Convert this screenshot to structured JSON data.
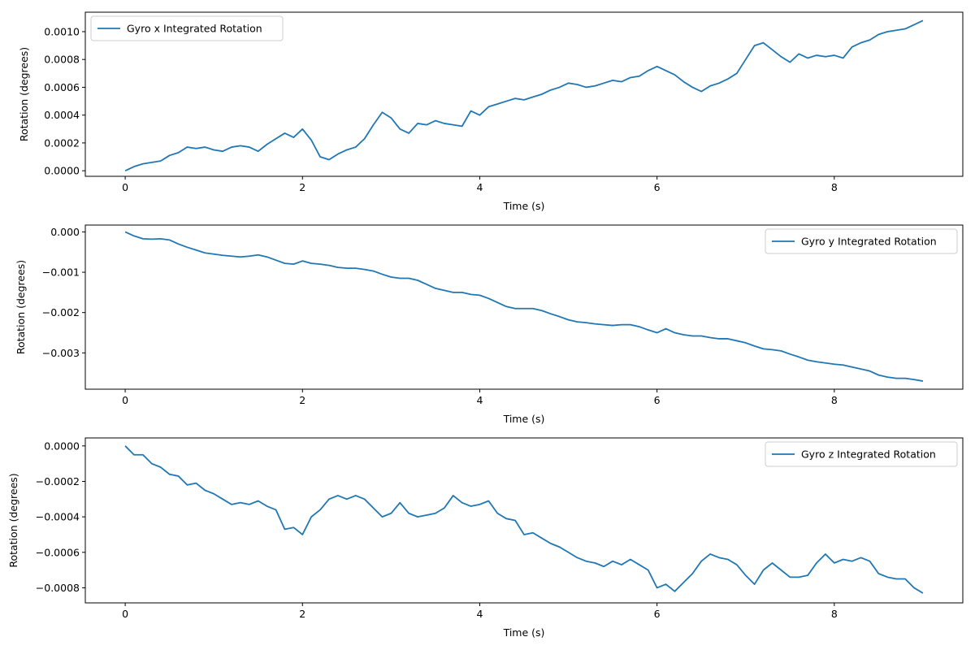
{
  "chart_data": [
    {
      "type": "line",
      "title": "",
      "xlabel": "Time (s)",
      "ylabel": "Rotation (degrees)",
      "xlim": [
        -0.45,
        9.45
      ],
      "ylim": [
        -4e-05,
        0.00114
      ],
      "xticks": [
        0,
        2,
        4,
        6,
        8
      ],
      "xtick_labels": [
        "0",
        "2",
        "4",
        "6",
        "8"
      ],
      "yticks": [
        0,
        0.0002,
        0.0004,
        0.0006,
        0.0008,
        0.001
      ],
      "ytick_labels": [
        "0.0000",
        "0.0002",
        "0.0004",
        "0.0006",
        "0.0008",
        "0.0010"
      ],
      "grid": false,
      "legend": {
        "placement": "upper-left"
      },
      "series": [
        {
          "name": "Gyro x Integrated Rotation",
          "color": "#1f77b4",
          "x": [
            0,
            0.1,
            0.2,
            0.3,
            0.4,
            0.5,
            0.6,
            0.7,
            0.8,
            0.9,
            1.0,
            1.1,
            1.2,
            1.3,
            1.4,
            1.5,
            1.6,
            1.7,
            1.8,
            1.9,
            2.0,
            2.1,
            2.2,
            2.3,
            2.4,
            2.5,
            2.6,
            2.7,
            2.8,
            2.9,
            3.0,
            3.1,
            3.2,
            3.3,
            3.4,
            3.5,
            3.6,
            3.7,
            3.8,
            3.9,
            4.0,
            4.1,
            4.2,
            4.3,
            4.4,
            4.5,
            4.6,
            4.7,
            4.8,
            4.9,
            5.0,
            5.1,
            5.2,
            5.3,
            5.4,
            5.5,
            5.6,
            5.7,
            5.8,
            5.9,
            6.0,
            6.1,
            6.2,
            6.3,
            6.4,
            6.5,
            6.6,
            6.7,
            6.8,
            6.9,
            7.0,
            7.1,
            7.2,
            7.3,
            7.4,
            7.5,
            7.6,
            7.7,
            7.8,
            7.9,
            8.0,
            8.1,
            8.2,
            8.3,
            8.4,
            8.5,
            8.6,
            8.7,
            8.8,
            8.9,
            9.0
          ],
          "y": [
            0.0,
            3e-05,
            5e-05,
            6e-05,
            7e-05,
            0.00011,
            0.00013,
            0.00017,
            0.00016,
            0.00017,
            0.00015,
            0.00014,
            0.00017,
            0.00018,
            0.00017,
            0.00014,
            0.00019,
            0.00023,
            0.00027,
            0.00024,
            0.0003,
            0.00022,
            0.0001,
            8e-05,
            0.00012,
            0.00015,
            0.00017,
            0.00023,
            0.00033,
            0.00042,
            0.00038,
            0.0003,
            0.00027,
            0.00034,
            0.00033,
            0.00036,
            0.00034,
            0.00033,
            0.00032,
            0.00043,
            0.0004,
            0.00046,
            0.00048,
            0.0005,
            0.00052,
            0.00051,
            0.00053,
            0.00055,
            0.00058,
            0.0006,
            0.00063,
            0.00062,
            0.0006,
            0.00061,
            0.00063,
            0.00065,
            0.00064,
            0.00067,
            0.00068,
            0.00072,
            0.00075,
            0.00072,
            0.00069,
            0.00064,
            0.0006,
            0.00057,
            0.00061,
            0.00063,
            0.00066,
            0.0007,
            0.0008,
            0.0009,
            0.00092,
            0.00087,
            0.00082,
            0.00078,
            0.00084,
            0.00081,
            0.00083,
            0.00082,
            0.00083,
            0.00081,
            0.00089,
            0.00092,
            0.00094,
            0.00098,
            0.001,
            0.00101,
            0.00102,
            0.00105,
            0.00108
          ]
        }
      ]
    },
    {
      "type": "line",
      "title": "",
      "xlabel": "Time (s)",
      "ylabel": "Rotation (degrees)",
      "xlim": [
        -0.45,
        9.45
      ],
      "ylim": [
        -0.0039,
        0.00017
      ],
      "xticks": [
        0,
        2,
        4,
        6,
        8
      ],
      "xtick_labels": [
        "0",
        "2",
        "4",
        "6",
        "8"
      ],
      "yticks": [
        0,
        -0.001,
        -0.002,
        -0.003
      ],
      "ytick_labels": [
        "0.000",
        "−0.001",
        "−0.002",
        "−0.003"
      ],
      "grid": false,
      "legend": {
        "placement": "upper-right"
      },
      "series": [
        {
          "name": "Gyro y Integrated Rotation",
          "color": "#1f77b4",
          "x": [
            0,
            0.1,
            0.2,
            0.3,
            0.4,
            0.5,
            0.6,
            0.7,
            0.8,
            0.9,
            1.0,
            1.1,
            1.2,
            1.3,
            1.4,
            1.5,
            1.6,
            1.7,
            1.8,
            1.9,
            2.0,
            2.1,
            2.2,
            2.3,
            2.4,
            2.5,
            2.6,
            2.7,
            2.8,
            2.9,
            3.0,
            3.1,
            3.2,
            3.3,
            3.4,
            3.5,
            3.6,
            3.7,
            3.8,
            3.9,
            4.0,
            4.1,
            4.2,
            4.3,
            4.4,
            4.5,
            4.6,
            4.7,
            4.8,
            4.9,
            5.0,
            5.1,
            5.2,
            5.3,
            5.4,
            5.5,
            5.6,
            5.7,
            5.8,
            5.9,
            6.0,
            6.1,
            6.2,
            6.3,
            6.4,
            6.5,
            6.6,
            6.7,
            6.8,
            6.9,
            7.0,
            7.1,
            7.2,
            7.3,
            7.4,
            7.5,
            7.6,
            7.7,
            7.8,
            7.9,
            8.0,
            8.1,
            8.2,
            8.3,
            8.4,
            8.5,
            8.6,
            8.7,
            8.8,
            8.9,
            9.0
          ],
          "y": [
            0.0,
            -0.0001,
            -0.00017,
            -0.00018,
            -0.00017,
            -0.0002,
            -0.0003,
            -0.00038,
            -0.00045,
            -0.00052,
            -0.00055,
            -0.00058,
            -0.0006,
            -0.00062,
            -0.0006,
            -0.00057,
            -0.00062,
            -0.0007,
            -0.00078,
            -0.0008,
            -0.00072,
            -0.00078,
            -0.0008,
            -0.00083,
            -0.00088,
            -0.0009,
            -0.0009,
            -0.00093,
            -0.00097,
            -0.00105,
            -0.00112,
            -0.00115,
            -0.00115,
            -0.0012,
            -0.0013,
            -0.0014,
            -0.00145,
            -0.0015,
            -0.0015,
            -0.00155,
            -0.00157,
            -0.00165,
            -0.00175,
            -0.00185,
            -0.0019,
            -0.0019,
            -0.0019,
            -0.00195,
            -0.00203,
            -0.0021,
            -0.00218,
            -0.00223,
            -0.00225,
            -0.00228,
            -0.0023,
            -0.00232,
            -0.0023,
            -0.0023,
            -0.00235,
            -0.00243,
            -0.0025,
            -0.0024,
            -0.0025,
            -0.00255,
            -0.00258,
            -0.00258,
            -0.00262,
            -0.00265,
            -0.00265,
            -0.0027,
            -0.00275,
            -0.00283,
            -0.0029,
            -0.00292,
            -0.00295,
            -0.00303,
            -0.0031,
            -0.00318,
            -0.00322,
            -0.00325,
            -0.00328,
            -0.0033,
            -0.00335,
            -0.0034,
            -0.00345,
            -0.00355,
            -0.0036,
            -0.00363,
            -0.00363,
            -0.00366,
            -0.0037
          ]
        }
      ]
    },
    {
      "type": "line",
      "title": "",
      "xlabel": "Time (s)",
      "ylabel": "Rotation (degrees)",
      "xlim": [
        -0.45,
        9.45
      ],
      "ylim": [
        -0.000885,
        4.5e-05
      ],
      "xticks": [
        0,
        2,
        4,
        6,
        8
      ],
      "xtick_labels": [
        "0",
        "2",
        "4",
        "6",
        "8"
      ],
      "yticks": [
        0,
        -0.0002,
        -0.0004,
        -0.0006,
        -0.0008
      ],
      "ytick_labels": [
        "0.0000",
        "−0.0002",
        "−0.0004",
        "−0.0006",
        "−0.0008"
      ],
      "grid": false,
      "legend": {
        "placement": "upper-right"
      },
      "series": [
        {
          "name": "Gyro z Integrated Rotation",
          "color": "#1f77b4",
          "x": [
            0,
            0.1,
            0.2,
            0.3,
            0.4,
            0.5,
            0.6,
            0.7,
            0.8,
            0.9,
            1.0,
            1.1,
            1.2,
            1.3,
            1.4,
            1.5,
            1.6,
            1.7,
            1.8,
            1.9,
            2.0,
            2.1,
            2.2,
            2.3,
            2.4,
            2.5,
            2.6,
            2.7,
            2.8,
            2.9,
            3.0,
            3.1,
            3.2,
            3.3,
            3.4,
            3.5,
            3.6,
            3.7,
            3.8,
            3.9,
            4.0,
            4.1,
            4.2,
            4.3,
            4.4,
            4.5,
            4.6,
            4.7,
            4.8,
            4.9,
            5.0,
            5.1,
            5.2,
            5.3,
            5.4,
            5.5,
            5.6,
            5.7,
            5.8,
            5.9,
            6.0,
            6.1,
            6.2,
            6.3,
            6.4,
            6.5,
            6.6,
            6.7,
            6.8,
            6.9,
            7.0,
            7.1,
            7.2,
            7.3,
            7.4,
            7.5,
            7.6,
            7.7,
            7.8,
            7.9,
            8.0,
            8.1,
            8.2,
            8.3,
            8.4,
            8.5,
            8.6,
            8.7,
            8.8,
            8.9,
            9.0
          ],
          "y": [
            0.0,
            -5e-05,
            -5e-05,
            -0.0001,
            -0.00012,
            -0.00016,
            -0.00017,
            -0.00022,
            -0.00021,
            -0.00025,
            -0.00027,
            -0.0003,
            -0.00033,
            -0.00032,
            -0.00033,
            -0.00031,
            -0.00034,
            -0.00036,
            -0.00047,
            -0.00046,
            -0.0005,
            -0.0004,
            -0.00036,
            -0.0003,
            -0.00028,
            -0.0003,
            -0.00028,
            -0.0003,
            -0.00035,
            -0.0004,
            -0.00038,
            -0.00032,
            -0.00038,
            -0.0004,
            -0.00039,
            -0.00038,
            -0.00035,
            -0.00028,
            -0.00032,
            -0.00034,
            -0.00033,
            -0.00031,
            -0.00038,
            -0.00041,
            -0.00042,
            -0.0005,
            -0.00049,
            -0.00052,
            -0.00055,
            -0.00057,
            -0.0006,
            -0.00063,
            -0.00065,
            -0.00066,
            -0.00068,
            -0.00065,
            -0.00067,
            -0.00064,
            -0.00067,
            -0.0007,
            -0.0008,
            -0.00078,
            -0.00082,
            -0.00077,
            -0.00072,
            -0.00065,
            -0.00061,
            -0.00063,
            -0.00064,
            -0.00067,
            -0.00073,
            -0.00078,
            -0.0007,
            -0.00066,
            -0.0007,
            -0.00074,
            -0.00074,
            -0.00073,
            -0.00066,
            -0.00061,
            -0.00066,
            -0.00064,
            -0.00065,
            -0.00063,
            -0.00065,
            -0.00072,
            -0.00074,
            -0.00075,
            -0.00075,
            -0.0008,
            -0.00083
          ]
        }
      ]
    }
  ]
}
